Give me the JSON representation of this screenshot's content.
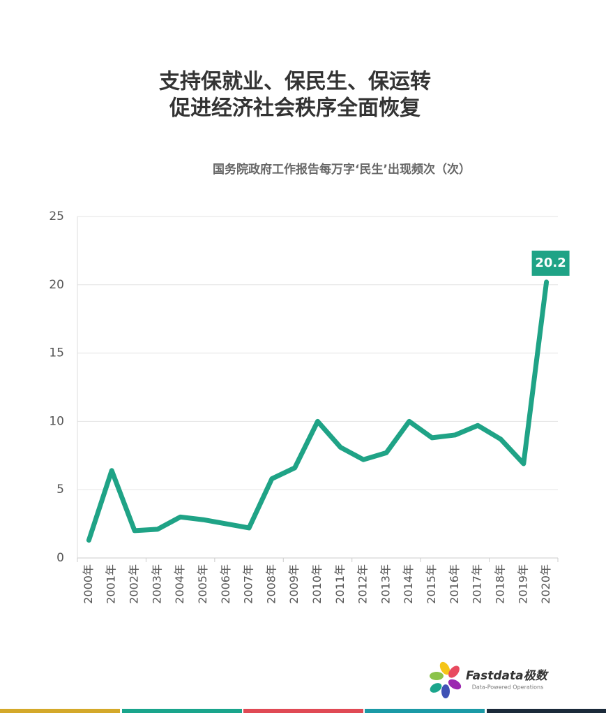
{
  "chart_data": {
    "type": "line",
    "title": [
      "支持保就业、保民生、保运转",
      "促进经济社会秩序全面恢复"
    ],
    "subtitle": "国务院政府工作报告每万字‘民生’出现频次（次）",
    "categories": [
      "2000年",
      "2001年",
      "2002年",
      "2003年",
      "2004年",
      "2005年",
      "2006年",
      "2007年",
      "2008年",
      "2009年",
      "2010年",
      "2011年",
      "2012年",
      "2013年",
      "2014年",
      "2015年",
      "2016年",
      "2017年",
      "2018年",
      "2019年",
      "2020年"
    ],
    "values": [
      1.3,
      6.4,
      2.0,
      2.1,
      3.0,
      2.8,
      2.5,
      2.2,
      5.8,
      6.6,
      10.0,
      8.1,
      7.2,
      7.7,
      10.0,
      8.8,
      9.0,
      9.7,
      8.7,
      6.9,
      20.2
    ],
    "color": "#1fa386",
    "ylim": [
      0,
      25
    ],
    "yticks": [
      0,
      5,
      10,
      15,
      20,
      25
    ],
    "grid": true
  },
  "branding": {
    "name": "Fastdata极数",
    "tagline": "Data-Powered Operations"
  }
}
